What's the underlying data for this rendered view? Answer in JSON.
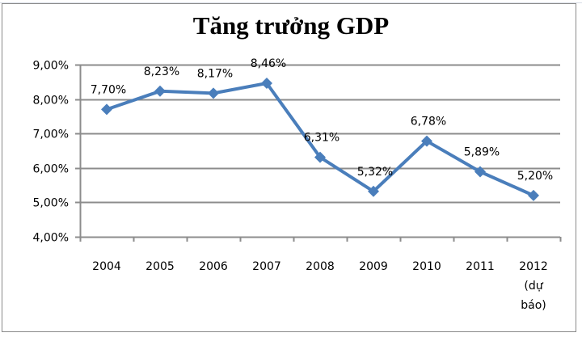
{
  "chart_data": {
    "type": "line",
    "title": "Tăng trưởng GDP",
    "xlabel": "",
    "ylabel": "",
    "categories": [
      "2004",
      "2005",
      "2006",
      "2007",
      "2008",
      "2009",
      "2010",
      "2011",
      "2012 (dự báo)"
    ],
    "category_lines": [
      [
        "2004"
      ],
      [
        "2005"
      ],
      [
        "2006"
      ],
      [
        "2007"
      ],
      [
        "2008"
      ],
      [
        "2009"
      ],
      [
        "2010"
      ],
      [
        "2011"
      ],
      [
        "2012",
        "(dự",
        "báo)"
      ]
    ],
    "series": [
      {
        "name": "Tăng trưởng GDP",
        "values": [
          7.7,
          8.23,
          8.17,
          8.46,
          6.31,
          5.32,
          6.78,
          5.89,
          5.2
        ],
        "labels": [
          "7,70%",
          "8,23%",
          "8,17%",
          "8,46%",
          "6,31%",
          "5,32%",
          "6,78%",
          "5,89%",
          "5,20%"
        ],
        "color": "#4a7ebb",
        "marker": "diamond"
      }
    ],
    "ylim": [
      4,
      9
    ],
    "yticks": [
      4,
      5,
      6,
      7,
      8,
      9
    ],
    "ytick_labels": [
      "4,00%",
      "5,00%",
      "6,00%",
      "7,00%",
      "8,00%",
      "9,00%"
    ],
    "grid": true,
    "legend": "none"
  },
  "colors": {
    "line": "#4a7ebb",
    "grid": "#8c8c8c",
    "axis": "#8c8c8c",
    "border": "#8a8a8a"
  }
}
